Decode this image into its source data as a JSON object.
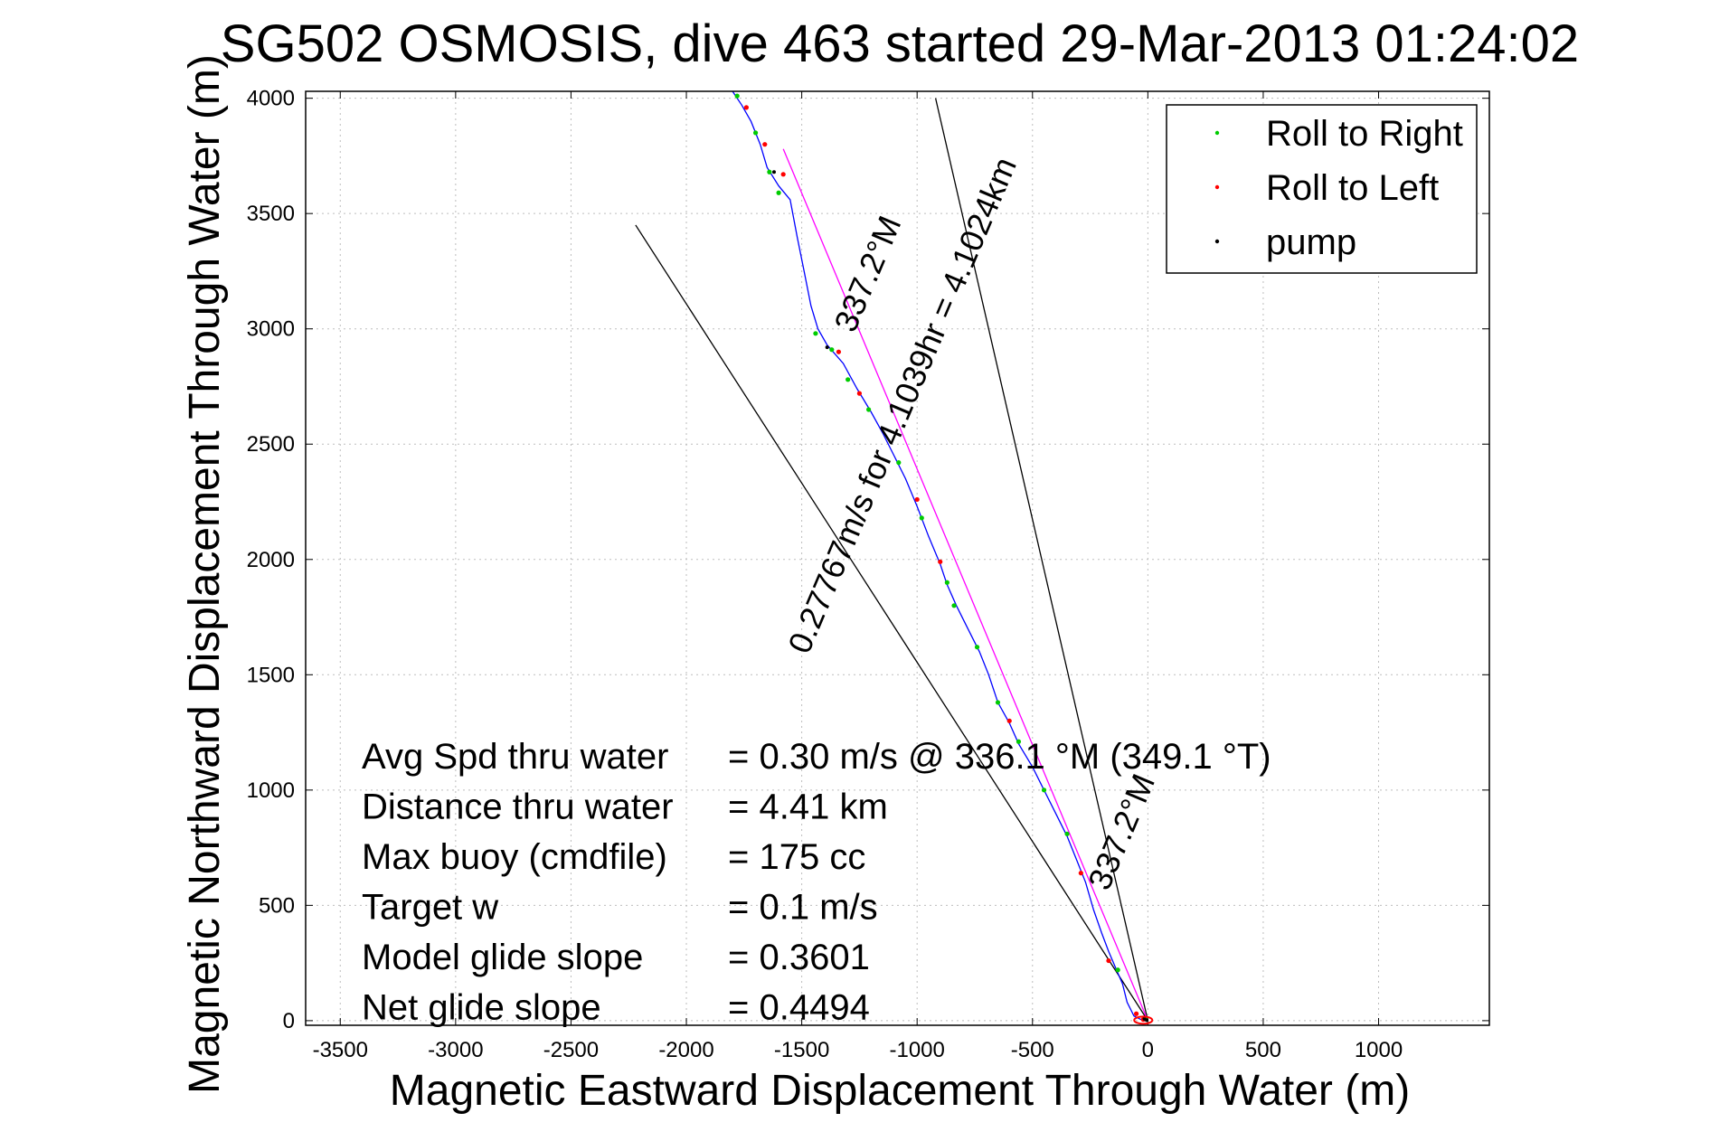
{
  "chart_data": {
    "type": "line",
    "title": "SG502 OSMOSIS, dive 463 started 29-Mar-2013 01:24:02",
    "xlabel": "Magnetic Eastward Displacement Through Water (m)",
    "ylabel": "Magnetic Northward Displacement Through Water (m)",
    "xlim": [
      -3650,
      1480
    ],
    "ylim": [
      -20,
      4030
    ],
    "xticks": [
      -3500,
      -3000,
      -2500,
      -2000,
      -1500,
      -1000,
      -500,
      0,
      500,
      1000
    ],
    "yticks": [
      0,
      500,
      1000,
      1500,
      2000,
      2500,
      3000,
      3500,
      4000
    ],
    "grid": true,
    "legend": {
      "placement": "top-right",
      "entries": [
        {
          "label": "Roll to Right",
          "color": "#00cc00"
        },
        {
          "label": "Roll to Left",
          "color": "#ff0000"
        },
        {
          "label": "pump",
          "color": "#000000"
        }
      ]
    },
    "track": {
      "color": "#0000ff",
      "points": [
        [
          0,
          0
        ],
        [
          -30,
          5
        ],
        [
          -60,
          20
        ],
        [
          -90,
          80
        ],
        [
          -110,
          160
        ],
        [
          -140,
          230
        ],
        [
          -170,
          300
        ],
        [
          -200,
          380
        ],
        [
          -235,
          480
        ],
        [
          -270,
          600
        ],
        [
          -310,
          700
        ],
        [
          -350,
          800
        ],
        [
          -400,
          900
        ],
        [
          -450,
          1000
        ],
        [
          -500,
          1100
        ],
        [
          -560,
          1200
        ],
        [
          -600,
          1290
        ],
        [
          -650,
          1380
        ],
        [
          -690,
          1500
        ],
        [
          -730,
          1600
        ],
        [
          -780,
          1700
        ],
        [
          -830,
          1800
        ],
        [
          -870,
          1890
        ],
        [
          -900,
          1980
        ],
        [
          -950,
          2100
        ],
        [
          -1000,
          2230
        ],
        [
          -1050,
          2350
        ],
        [
          -1100,
          2450
        ],
        [
          -1150,
          2550
        ],
        [
          -1200,
          2640
        ],
        [
          -1260,
          2740
        ],
        [
          -1320,
          2850
        ],
        [
          -1390,
          2930
        ],
        [
          -1430,
          3000
        ],
        [
          -1460,
          3100
        ],
        [
          -1490,
          3250
        ],
        [
          -1520,
          3400
        ],
        [
          -1550,
          3560
        ],
        [
          -1600,
          3620
        ],
        [
          -1650,
          3700
        ],
        [
          -1680,
          3800
        ],
        [
          -1720,
          3900
        ],
        [
          -1760,
          3970
        ],
        [
          -1800,
          4030
        ]
      ]
    },
    "roll_right": [
      [
        -10,
        10
      ],
      [
        -130,
        220
      ],
      [
        -350,
        810
      ],
      [
        -450,
        1000
      ],
      [
        -560,
        1210
      ],
      [
        -650,
        1380
      ],
      [
        -740,
        1620
      ],
      [
        -840,
        1800
      ],
      [
        -870,
        1900
      ],
      [
        -980,
        2180
      ],
      [
        -1080,
        2420
      ],
      [
        -1210,
        2650
      ],
      [
        -1300,
        2780
      ],
      [
        -1370,
        2910
      ],
      [
        -1440,
        2980
      ],
      [
        -1600,
        3590
      ],
      [
        -1640,
        3680
      ],
      [
        -1700,
        3850
      ],
      [
        -1780,
        4010
      ]
    ],
    "roll_left": [
      [
        -20,
        5
      ],
      [
        -50,
        30
      ],
      [
        -170,
        260
      ],
      [
        -290,
        640
      ],
      [
        -600,
        1300
      ],
      [
        -900,
        1990
      ],
      [
        -1000,
        2260
      ],
      [
        -1250,
        2720
      ],
      [
        -1340,
        2900
      ],
      [
        -1580,
        3670
      ],
      [
        -1660,
        3800
      ],
      [
        -1740,
        3960
      ]
    ],
    "pump": [
      [
        -5,
        2
      ],
      [
        -15,
        8
      ],
      [
        -1390,
        2920
      ],
      [
        -1620,
        3680
      ]
    ],
    "lines": [
      {
        "name": "",
        "color": "#000000",
        "from": [
          0,
          0
        ],
        "to": [
          -2220,
          3450
        ]
      },
      {
        "name": "",
        "color": "#000000",
        "from": [
          0,
          0
        ],
        "to": [
          -920,
          4000
        ]
      },
      {
        "name": "",
        "color": "#ff00ff",
        "from": [
          0,
          0
        ],
        "to": [
          -1580,
          3780
        ]
      }
    ],
    "annotations": [
      {
        "text": "337.2°M",
        "x": -1170,
        "y": 3220,
        "angle": -67
      },
      {
        "text": "0.27767m/s for 4.1039hr = 4.1024km",
        "x": -1020,
        "y": 2650,
        "angle": -67
      },
      {
        "text": "337.2°M",
        "x": -70,
        "y": 800,
        "angle": -67
      }
    ],
    "stats": [
      {
        "label": "Avg Spd thru water",
        "value": "=  0.30 m/s @ 336.1 °M (349.1 °T)"
      },
      {
        "label": "Distance thru water",
        "value": "=  4.41 km"
      },
      {
        "label": "Max buoy (cmdfile)",
        "value": "= 175 cc"
      },
      {
        "label": "Target w",
        "value": "= 0.1 m/s"
      },
      {
        "label": "Model glide slope",
        "value": "= 0.3601"
      },
      {
        "label": "Net glide slope",
        "value": "= 0.4494"
      }
    ]
  }
}
